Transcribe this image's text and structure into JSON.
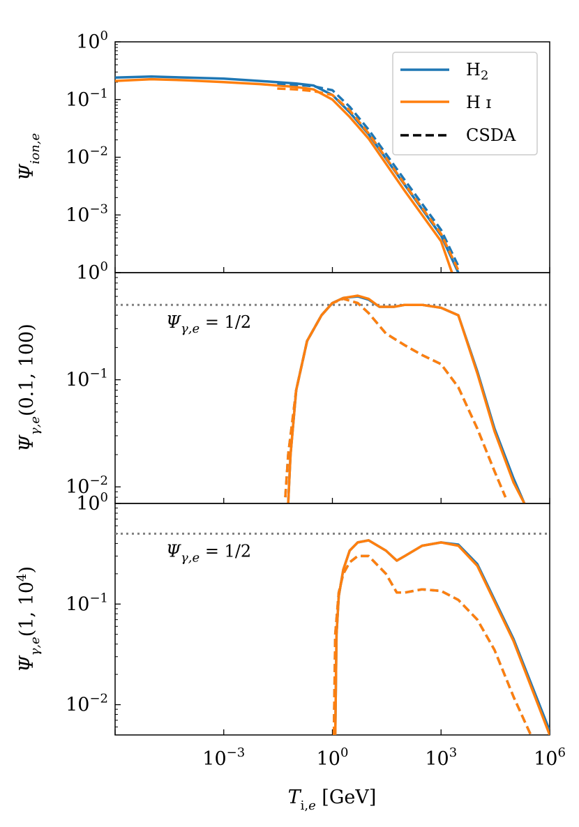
{
  "chart_data": [
    {
      "type": "line",
      "panel": "top",
      "ylabel": "Ψ_{ion,e}",
      "xscale": "log",
      "yscale": "log",
      "xlim": [
        1e-06,
        1000000.0
      ],
      "ylim": [
        0.0001,
        1
      ],
      "ytick_labels": [
        {
          "base": "10",
          "exp": "0",
          "value": 1
        },
        {
          "base": "10",
          "exp": "−1",
          "value": 0.1
        },
        {
          "base": "10",
          "exp": "−2",
          "value": 0.01
        },
        {
          "base": "10",
          "exp": "−3",
          "value": 0.001
        }
      ],
      "legend": {
        "placement": "top-right",
        "entries": [
          {
            "label": "H₂",
            "color": "#1f77b4",
            "style": "solid"
          },
          {
            "label": "H ɪ",
            "color": "#ff7f0e",
            "style": "solid"
          },
          {
            "label": "CSDA",
            "color": "#000000",
            "style": "dashed"
          }
        ]
      },
      "series": [
        {
          "name": "H2",
          "color": "#1f77b4",
          "style": "solid",
          "x": [
            1e-06,
            1e-05,
            0.0001,
            0.001,
            0.01,
            0.1,
            0.3,
            1,
            3,
            10,
            100,
            1000,
            3000
          ],
          "y": [
            0.24,
            0.25,
            0.24,
            0.23,
            0.21,
            0.19,
            0.175,
            0.12,
            0.06,
            0.025,
            0.0033,
            0.00044,
            0.0001
          ]
        },
        {
          "name": "HI",
          "color": "#ff7f0e",
          "style": "solid",
          "x": [
            1e-06,
            1e-05,
            0.0001,
            0.001,
            0.01,
            0.1,
            0.3,
            1,
            3,
            10,
            100,
            1000,
            2000
          ],
          "y": [
            0.21,
            0.225,
            0.215,
            0.2,
            0.185,
            0.165,
            0.15,
            0.1,
            0.05,
            0.021,
            0.0026,
            0.00035,
            0.0001
          ]
        },
        {
          "name": "H2 CSDA",
          "color": "#1f77b4",
          "style": "dashed",
          "x": [
            0.03,
            0.1,
            0.3,
            1,
            3,
            10,
            100,
            1000,
            3000
          ],
          "y": [
            0.19,
            0.18,
            0.17,
            0.145,
            0.075,
            0.03,
            0.004,
            0.00055,
            0.00013
          ]
        },
        {
          "name": "HI CSDA",
          "color": "#ff7f0e",
          "style": "dashed",
          "x": [
            0.03,
            0.1,
            0.3,
            1,
            3,
            10,
            100,
            1000,
            3000
          ],
          "y": [
            0.155,
            0.15,
            0.14,
            0.12,
            0.065,
            0.026,
            0.0034,
            0.00047,
            0.00011
          ]
        }
      ]
    },
    {
      "type": "line",
      "panel": "middle",
      "ylabel": "Ψ_{γ,e}(0.1, 100)",
      "xscale": "log",
      "yscale": "log",
      "xlim": [
        1e-06,
        1000000.0
      ],
      "ylim": [
        0.007,
        1
      ],
      "ytick_labels": [
        {
          "base": "10",
          "exp": "0",
          "value": 1
        },
        {
          "base": "10",
          "exp": "−1",
          "value": 0.1
        },
        {
          "base": "10",
          "exp": "−2",
          "value": 0.01
        }
      ],
      "hline": {
        "y": 0.5,
        "label": "Ψ_{γ,e} = 1/2",
        "color": "#808080"
      },
      "series": [
        {
          "name": "H2",
          "color": "#1f77b4",
          "style": "solid",
          "x": [
            0.06,
            0.07,
            0.1,
            0.2,
            0.5,
            1,
            2,
            5,
            10,
            20,
            50,
            100,
            300,
            1000,
            3000,
            10000,
            30000,
            100000,
            200000
          ],
          "y": [
            0.007,
            0.02,
            0.08,
            0.23,
            0.4,
            0.52,
            0.58,
            0.6,
            0.56,
            0.48,
            0.48,
            0.5,
            0.5,
            0.47,
            0.4,
            0.12,
            0.035,
            0.012,
            0.007
          ]
        },
        {
          "name": "HI",
          "color": "#ff7f0e",
          "style": "solid",
          "x": [
            0.06,
            0.07,
            0.1,
            0.2,
            0.5,
            1,
            2,
            5,
            10,
            20,
            50,
            100,
            300,
            1000,
            3000,
            10000,
            30000,
            100000,
            200000
          ],
          "y": [
            0.007,
            0.02,
            0.08,
            0.23,
            0.4,
            0.52,
            0.58,
            0.61,
            0.57,
            0.48,
            0.48,
            0.5,
            0.5,
            0.47,
            0.4,
            0.115,
            0.033,
            0.011,
            0.007
          ]
        },
        {
          "name": "H2 CSDA",
          "color": "#1f77b4",
          "style": "dashed",
          "x": [
            0.05,
            0.06,
            0.1,
            0.2,
            0.5,
            1,
            2,
            5,
            10,
            30,
            100,
            300,
            1000,
            3000,
            10000,
            30000,
            60000
          ],
          "y": [
            0.008,
            0.02,
            0.08,
            0.23,
            0.4,
            0.52,
            0.57,
            0.52,
            0.42,
            0.27,
            0.21,
            0.17,
            0.14,
            0.085,
            0.035,
            0.014,
            0.008
          ]
        },
        {
          "name": "HI CSDA",
          "color": "#ff7f0e",
          "style": "dashed",
          "x": [
            0.05,
            0.06,
            0.1,
            0.2,
            0.5,
            1,
            2,
            5,
            10,
            30,
            100,
            300,
            1000,
            3000,
            10000,
            30000,
            60000
          ],
          "y": [
            0.008,
            0.02,
            0.08,
            0.23,
            0.4,
            0.52,
            0.57,
            0.52,
            0.42,
            0.27,
            0.21,
            0.17,
            0.14,
            0.085,
            0.035,
            0.014,
            0.008
          ]
        }
      ]
    },
    {
      "type": "line",
      "panel": "bottom",
      "ylabel": "Ψ_{γ,e}(1, 10⁴)",
      "xlabel": "T_{i,e} [GeV]",
      "xscale": "log",
      "yscale": "log",
      "xlim": [
        1e-06,
        1000000.0
      ],
      "ylim": [
        0.005,
        1
      ],
      "xtick_labels": [
        {
          "base": "10",
          "exp": "−3",
          "value": 0.001
        },
        {
          "base": "10",
          "exp": "0",
          "value": 1
        },
        {
          "base": "10",
          "exp": "3",
          "value": 1000
        },
        {
          "base": "10",
          "exp": "6",
          "value": 1000000
        }
      ],
      "ytick_labels": [
        {
          "base": "10",
          "exp": "0",
          "value": 1
        },
        {
          "base": "10",
          "exp": "−1",
          "value": 0.1
        },
        {
          "base": "10",
          "exp": "−2",
          "value": 0.01
        }
      ],
      "hline": {
        "y": 0.5,
        "label": "Ψ_{γ,e} = 1/2",
        "color": "#808080"
      },
      "series": [
        {
          "name": "H2",
          "color": "#1f77b4",
          "style": "solid",
          "x": [
            1.2,
            1.3,
            1.5,
            2,
            3,
            5,
            10,
            30,
            60,
            100,
            300,
            1000,
            3000,
            10000,
            100000,
            1000000
          ],
          "y": [
            0.005,
            0.05,
            0.12,
            0.22,
            0.34,
            0.41,
            0.43,
            0.34,
            0.27,
            0.3,
            0.38,
            0.41,
            0.39,
            0.25,
            0.045,
            0.0055
          ]
        },
        {
          "name": "HI",
          "color": "#ff7f0e",
          "style": "solid",
          "x": [
            1.2,
            1.3,
            1.5,
            2,
            3,
            5,
            10,
            30,
            60,
            100,
            300,
            1000,
            3000,
            10000,
            100000,
            1000000
          ],
          "y": [
            0.005,
            0.05,
            0.12,
            0.22,
            0.34,
            0.41,
            0.43,
            0.34,
            0.27,
            0.3,
            0.38,
            0.41,
            0.38,
            0.24,
            0.043,
            0.005
          ]
        },
        {
          "name": "H2 CSDA",
          "color": "#1f77b4",
          "style": "dashed",
          "x": [
            1.1,
            1.2,
            1.5,
            2,
            3,
            5,
            10,
            30,
            60,
            100,
            300,
            1000,
            3000,
            10000,
            30000,
            100000,
            300000
          ],
          "y": [
            0.005,
            0.05,
            0.13,
            0.2,
            0.26,
            0.3,
            0.3,
            0.2,
            0.13,
            0.13,
            0.14,
            0.135,
            0.11,
            0.07,
            0.035,
            0.012,
            0.005
          ]
        },
        {
          "name": "HI CSDA",
          "color": "#ff7f0e",
          "style": "dashed",
          "x": [
            1.1,
            1.2,
            1.5,
            2,
            3,
            5,
            10,
            30,
            60,
            100,
            300,
            1000,
            3000,
            10000,
            30000,
            100000,
            300000
          ],
          "y": [
            0.005,
            0.05,
            0.13,
            0.2,
            0.26,
            0.3,
            0.3,
            0.2,
            0.13,
            0.13,
            0.14,
            0.135,
            0.11,
            0.07,
            0.035,
            0.012,
            0.005
          ]
        }
      ]
    }
  ]
}
